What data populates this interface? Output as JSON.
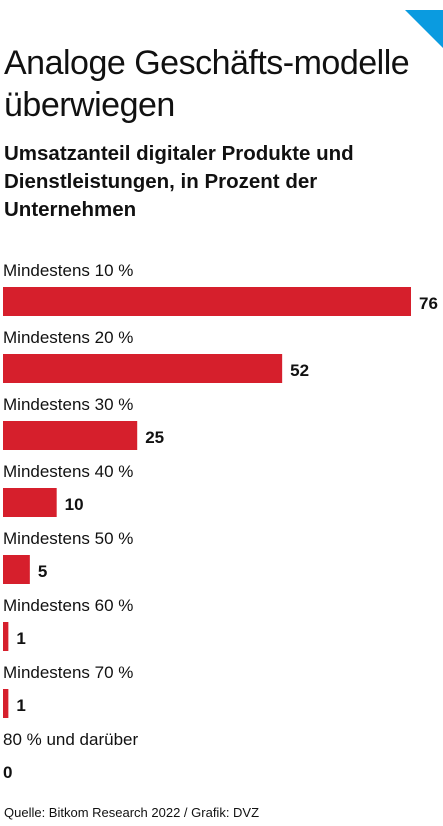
{
  "colors": {
    "bar": "#d61f2c",
    "corner": "#0a9be0"
  },
  "header": {
    "title": "Analoge Geschäfts-modelle überwiegen",
    "subtitle": "Umsatzanteil digitaler Produkte und Dienstleistungen, in Prozent der Unternehmen"
  },
  "footer": {
    "source": "Quelle: Bitkom Research 2022  / Grafik: DVZ"
  },
  "chart_data": {
    "type": "bar",
    "orientation": "horizontal",
    "categories": [
      "Mindestens 10 %",
      "Mindestens 20 %",
      "Mindestens 30 %",
      "Mindestens 40 %",
      "Mindestens 50 %",
      "Mindestens 60 %",
      "Mindestens 70 %",
      "80 % und darüber"
    ],
    "values": [
      76,
      52,
      25,
      10,
      5,
      1,
      1,
      0
    ],
    "value_labels": [
      "76",
      "52",
      "25",
      "10",
      "5",
      "1",
      "1",
      "0"
    ],
    "xlim": [
      0,
      76
    ],
    "grid": false,
    "legend": "none"
  }
}
